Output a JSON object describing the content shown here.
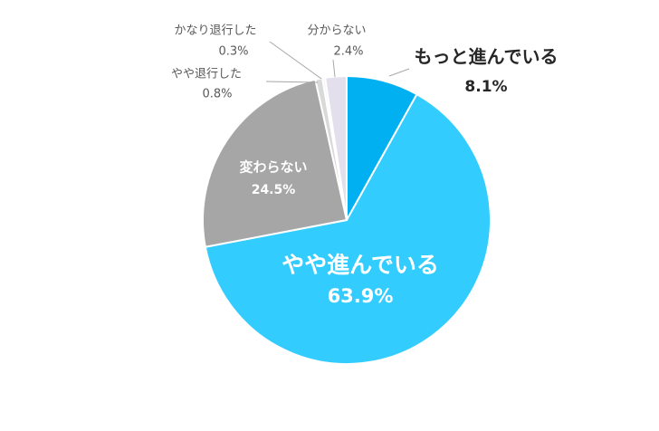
{
  "chart_data": {
    "type": "pie",
    "categories": [
      "もっと進んでいる",
      "やや進んでいる",
      "変わらない",
      "やや退行した",
      "かなり退行した",
      "分からない"
    ],
    "values": [
      8.1,
      63.9,
      24.5,
      0.8,
      0.3,
      2.4
    ],
    "value_labels": [
      "8.1%",
      "63.9%",
      "24.5%",
      "0.8%",
      "0.3%",
      "2.4%"
    ],
    "colors": [
      "#00b0f0",
      "#33ccff",
      "#a6a6a6",
      "#d9d9d9",
      "#f2f2f2",
      "#e4dfec"
    ]
  }
}
